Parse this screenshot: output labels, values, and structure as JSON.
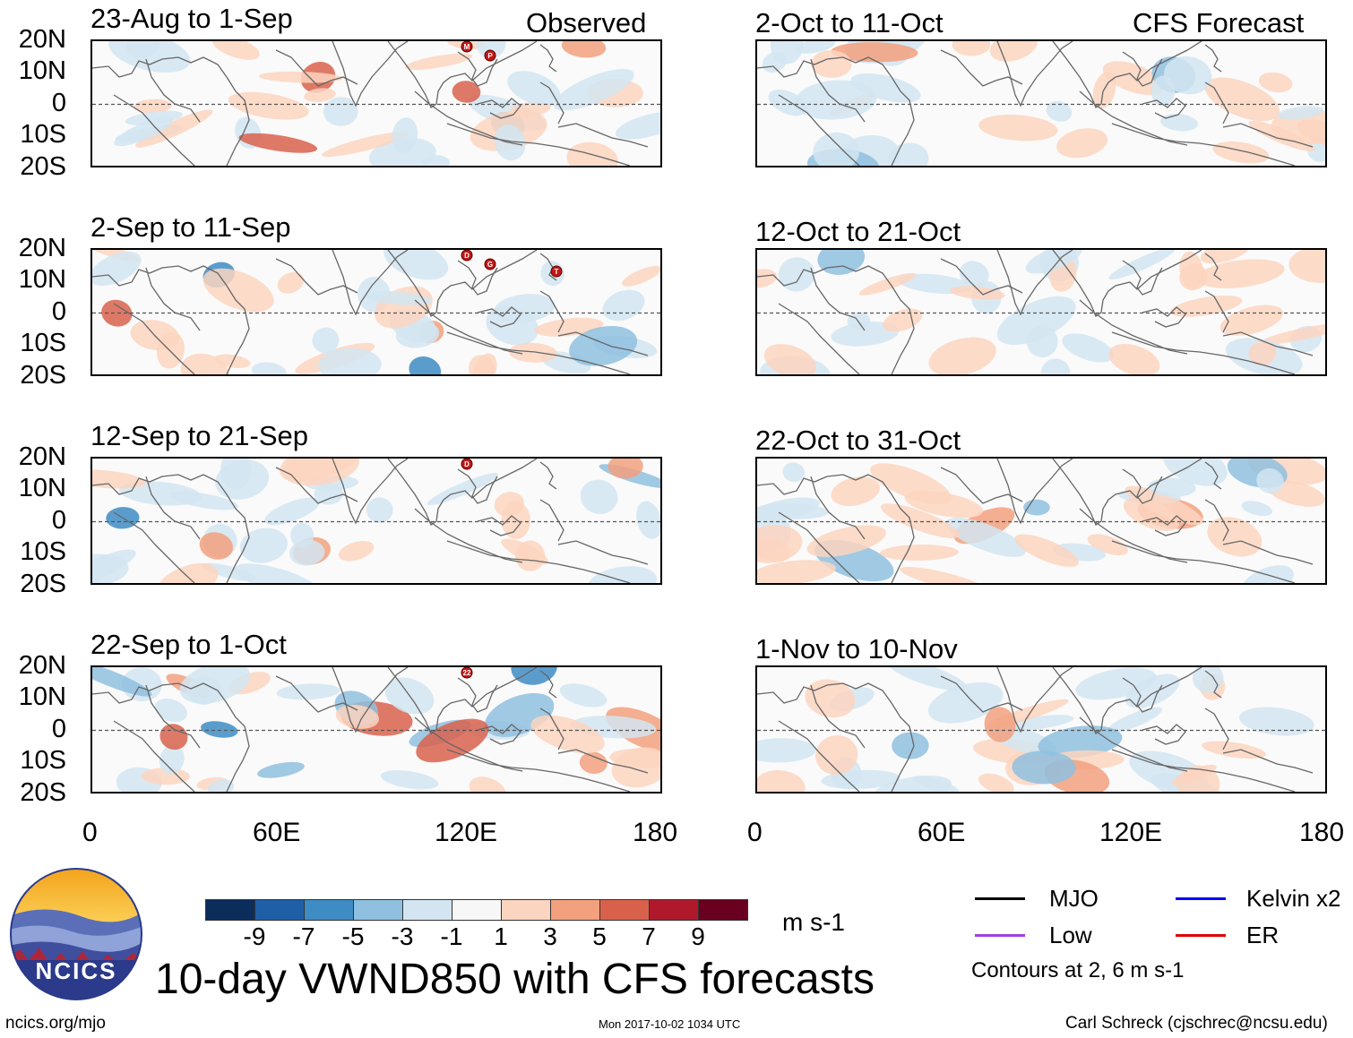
{
  "header": {
    "observed_label": "Observed",
    "forecast_label": "CFS Forecast"
  },
  "panels_observed": [
    {
      "title": "23-Aug to 1-Sep",
      "storms": [
        "M",
        "P"
      ]
    },
    {
      "title": "2-Sep to 11-Sep",
      "storms": [
        "D",
        "G",
        "T"
      ]
    },
    {
      "title": "12-Sep to 21-Sep",
      "storms": [
        "D"
      ]
    },
    {
      "title": "22-Sep to 1-Oct",
      "storms": [
        "22"
      ]
    }
  ],
  "panels_forecast": [
    {
      "title": "2-Oct to 11-Oct"
    },
    {
      "title": "12-Oct to 21-Oct"
    },
    {
      "title": "22-Oct to 31-Oct"
    },
    {
      "title": "1-Nov to 10-Nov"
    }
  ],
  "lat_labels": [
    "20N",
    "10N",
    "0",
    "10S",
    "20S"
  ],
  "lon_labels": [
    "0",
    "60E",
    "120E",
    "180"
  ],
  "colorbar": {
    "colors": [
      "#0b2d5c",
      "#1f5fa8",
      "#3d8cc4",
      "#8fc0df",
      "#d2e5f1",
      "#f7f7f7",
      "#fbd5c0",
      "#f2a07e",
      "#d9614c",
      "#b0192c",
      "#6a0020"
    ],
    "labels": [
      "-9",
      "-7",
      "-5",
      "-3",
      "-1",
      "1",
      "3",
      "5",
      "7",
      "9"
    ],
    "units": "m s-1"
  },
  "chart_data": {
    "type": "heatmap",
    "variable": "VWND850",
    "title": "10-day VWND850 with CFS forecasts",
    "units": "m s-1",
    "lat_range": [
      -20,
      20
    ],
    "lon_range": [
      0,
      180
    ],
    "color_levels": [
      -9,
      -7,
      -5,
      -3,
      -1,
      1,
      3,
      5,
      7,
      9
    ],
    "contour_levels": [
      2,
      6
    ]
  },
  "legend": {
    "items": [
      {
        "label": "MJO",
        "color": "#000000"
      },
      {
        "label": "Kelvin x2",
        "color": "#0000ff"
      },
      {
        "label": "Low",
        "color": "#a040e0"
      },
      {
        "label": "ER",
        "color": "#e00000"
      }
    ],
    "note": "Contours at 2, 6 m s-1"
  },
  "footer": {
    "logo_text": "NCICS",
    "main_title": "10-day VWND850 with CFS forecasts",
    "site": "ncics.org/mjo",
    "timestamp": "Mon 2017-10-02 1034 UTC",
    "credit": "Carl Schreck (cjschrec@ncsu.edu)"
  }
}
